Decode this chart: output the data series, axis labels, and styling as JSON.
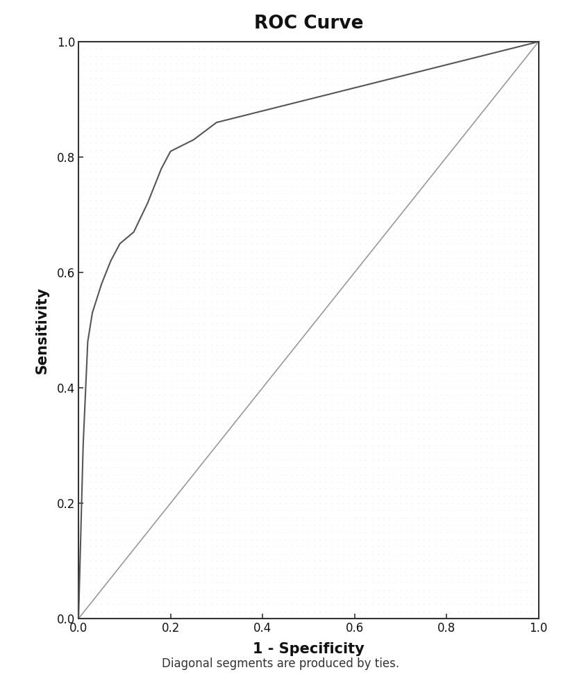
{
  "title": "ROC Curve",
  "xlabel": "1 - Specificity",
  "ylabel": "Sensitivity",
  "footnote": "Diagonal segments are produced by ties.",
  "title_fontsize": 19,
  "label_fontsize": 15,
  "tick_fontsize": 12,
  "footnote_fontsize": 12,
  "xlim": [
    0.0,
    1.0
  ],
  "ylim": [
    0.0,
    1.0
  ],
  "xticks": [
    0.0,
    0.2,
    0.4,
    0.6,
    0.8,
    1.0
  ],
  "yticks": [
    0.0,
    0.2,
    0.4,
    0.6,
    0.8,
    1.0
  ],
  "figure_bg": "#ffffff",
  "axes_bg": "#d8d8d8",
  "curve_color": "#555555",
  "diagonal_color": "#999999",
  "curve_linewidth": 1.5,
  "diagonal_linewidth": 1.2,
  "roc_x": [
    0.0,
    0.01,
    0.02,
    0.03,
    0.05,
    0.07,
    0.09,
    0.12,
    0.15,
    0.18,
    0.2,
    0.25,
    0.3,
    0.4,
    0.5,
    0.6,
    0.7,
    0.8,
    0.9,
    1.0
  ],
  "roc_y": [
    0.0,
    0.3,
    0.48,
    0.53,
    0.58,
    0.62,
    0.65,
    0.67,
    0.72,
    0.78,
    0.81,
    0.83,
    0.86,
    0.88,
    0.9,
    0.92,
    0.94,
    0.96,
    0.98,
    1.0
  ],
  "spine_color": "#333333",
  "spine_linewidth": 1.5
}
